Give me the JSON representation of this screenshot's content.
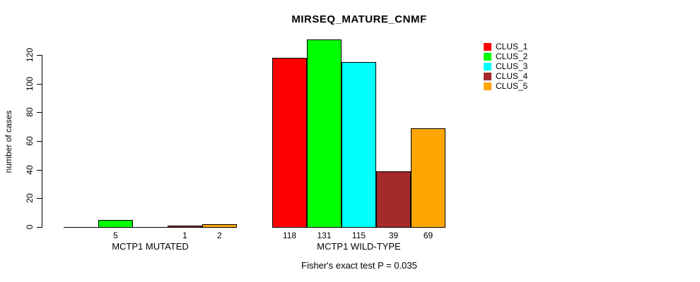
{
  "chart_data": {
    "type": "bar",
    "title": "MIRSEQ_MATURE_CNMF",
    "ylabel": "number of cases",
    "footnote": "Fisher's exact test P = 0.035",
    "categories": [
      "MCTP1 MUTATED",
      "MCTP1 WILD-TYPE"
    ],
    "series": [
      {
        "name": "CLUS_1",
        "color": "#FF0000",
        "values": [
          0,
          118
        ]
      },
      {
        "name": "CLUS_2",
        "color": "#00FF00",
        "values": [
          5,
          131
        ]
      },
      {
        "name": "CLUS_3",
        "color": "#00FFFF",
        "values": [
          0,
          115
        ]
      },
      {
        "name": "CLUS_4",
        "color": "#A52A2A",
        "values": [
          1,
          39
        ]
      },
      {
        "name": "CLUS_5",
        "color": "#FFA500",
        "values": [
          2,
          69
        ]
      }
    ],
    "bar_value_labels": {
      "MCTP1 MUTATED": [
        null,
        5,
        null,
        1,
        2
      ],
      "MCTP1 WILD-TYPE": [
        118,
        131,
        115,
        39,
        69
      ]
    },
    "yticks": [
      0,
      20,
      40,
      60,
      80,
      100,
      120
    ],
    "ylim": [
      0,
      131
    ],
    "grid": false,
    "legend_position": "top-right",
    "legend_entries": [
      "CLUS_1",
      "CLUS_2",
      "CLUS_3",
      "CLUS_4",
      "CLUS_5"
    ],
    "axis_color": "#000000",
    "text_color": "#000000",
    "background_color": "#FFFFFF"
  }
}
